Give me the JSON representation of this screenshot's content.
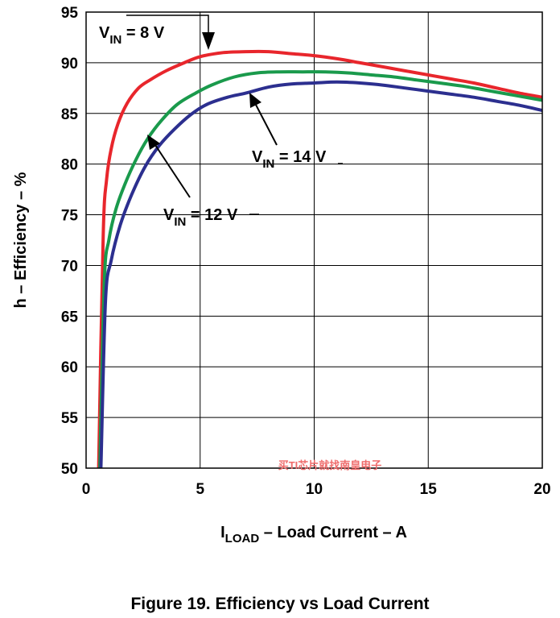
{
  "chart_data": {
    "type": "line",
    "xlabel": {
      "main": "I",
      "sub": "LOAD",
      "rest": " – Load Current – A"
    },
    "ylabel": "h – Efficiency – %",
    "xlim": [
      0,
      20
    ],
    "ylim": [
      50,
      95
    ],
    "x_ticks": [
      "0",
      "5",
      "10",
      "15",
      "20"
    ],
    "y_ticks": [
      "50",
      "55",
      "60",
      "65",
      "70",
      "75",
      "80",
      "85",
      "90",
      "95"
    ],
    "grid": true,
    "series": [
      {
        "name": "V_IN = 8 V",
        "color": "#e8262c",
        "x": [
          0.55,
          0.75,
          0.9,
          1.1,
          1.4,
          1.8,
          2.3,
          2.8,
          3.5,
          4.2,
          5.0,
          6.0,
          7.0,
          8.0,
          9.0,
          10.0,
          11.0,
          12.0,
          13.0,
          14.0,
          15.0,
          16.0,
          17.0,
          18.0,
          19.0,
          20.0
        ],
        "y": [
          50,
          73,
          78.5,
          81.5,
          84,
          86,
          87.5,
          88.3,
          89.2,
          89.9,
          90.6,
          91.0,
          91.1,
          91.1,
          90.9,
          90.7,
          90.4,
          90.0,
          89.6,
          89.2,
          88.8,
          88.4,
          88.0,
          87.5,
          87.0,
          86.6
        ]
      },
      {
        "name": "V_IN = 12 V",
        "color": "#1a9a4c",
        "x": [
          0.6,
          0.8,
          1.0,
          1.3,
          1.7,
          2.2,
          2.7,
          3.3,
          4.0,
          4.8,
          5.5,
          6.5,
          7.5,
          8.5,
          9.5,
          10.5,
          11.5,
          12.5,
          13.5,
          14.5,
          15.5,
          16.5,
          17.5,
          18.5,
          19.5,
          20.0
        ],
        "y": [
          50,
          68.5,
          72.5,
          75.5,
          78,
          80.5,
          82.5,
          84.3,
          85.9,
          87.0,
          87.8,
          88.6,
          89.0,
          89.1,
          89.1,
          89.1,
          89.0,
          88.8,
          88.6,
          88.3,
          88.0,
          87.7,
          87.3,
          86.9,
          86.5,
          86.3
        ]
      },
      {
        "name": "V_IN = 14 V",
        "color": "#2c2f8f",
        "x": [
          0.65,
          0.85,
          1.1,
          1.5,
          2.0,
          2.6,
          3.2,
          3.9,
          4.6,
          5.3,
          6.2,
          7.0,
          8.0,
          9.0,
          10.0,
          11.0,
          12.0,
          13.0,
          14.0,
          15.0,
          16.0,
          17.0,
          18.0,
          19.0,
          20.0
        ],
        "y": [
          50,
          66.5,
          70.5,
          74,
          77,
          79.8,
          81.8,
          83.5,
          84.9,
          85.9,
          86.6,
          87.0,
          87.6,
          87.9,
          88.0,
          88.1,
          88.0,
          87.8,
          87.5,
          87.2,
          86.9,
          86.6,
          86.2,
          85.8,
          85.3
        ]
      }
    ],
    "annotations": [
      {
        "main": "V",
        "sub": "IN",
        "rest": " = 8 V"
      },
      {
        "main": "V",
        "sub": "IN",
        "rest": " = 14 V"
      },
      {
        "main": "V",
        "sub": "IN",
        "rest": " = 12 V"
      }
    ]
  },
  "figure_caption": "Figure 19. Efficiency vs Load Current",
  "watermark": "买TI芯片就找南皇电子"
}
